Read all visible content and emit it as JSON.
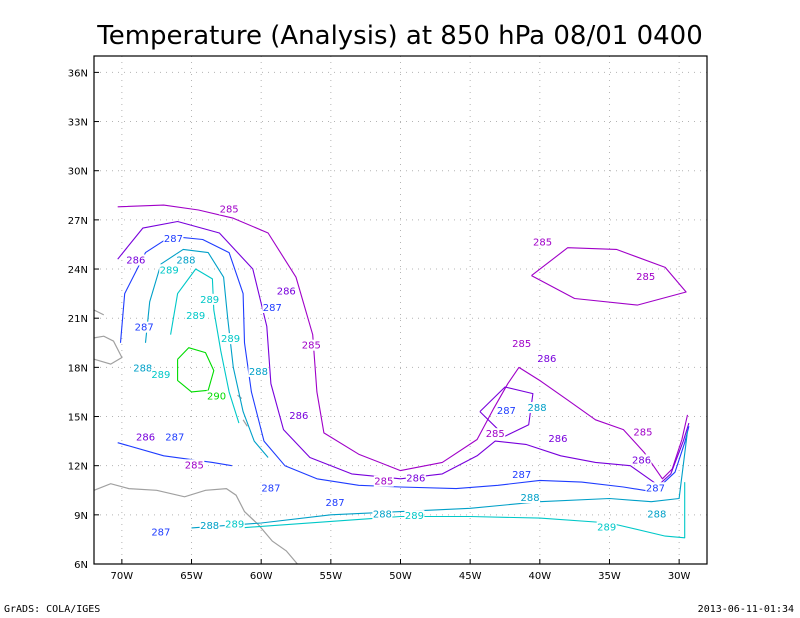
{
  "chart_data": {
    "type": "contour-map",
    "title": "Temperature (Analysis) at 850 hPa 08/01 0400",
    "x_ticks": [
      {
        "lon": -70,
        "label": "70W"
      },
      {
        "lon": -65,
        "label": "65W"
      },
      {
        "lon": -60,
        "label": "60W"
      },
      {
        "lon": -55,
        "label": "55W"
      },
      {
        "lon": -50,
        "label": "50W"
      },
      {
        "lon": -45,
        "label": "45W"
      },
      {
        "lon": -40,
        "label": "40W"
      },
      {
        "lon": -35,
        "label": "35W"
      },
      {
        "lon": -30,
        "label": "30W"
      }
    ],
    "y_ticks": [
      {
        "lat": 6,
        "label": "6N"
      },
      {
        "lat": 9,
        "label": "9N"
      },
      {
        "lat": 12,
        "label": "12N"
      },
      {
        "lat": 15,
        "label": "15N"
      },
      {
        "lat": 18,
        "label": "18N"
      },
      {
        "lat": 21,
        "label": "21N"
      },
      {
        "lat": 24,
        "label": "24N"
      },
      {
        "lat": 27,
        "label": "27N"
      },
      {
        "lat": 30,
        "label": "30N"
      },
      {
        "lat": 33,
        "label": "33N"
      },
      {
        "lat": 36,
        "label": "36N"
      }
    ],
    "xlim": [
      -72,
      -28
    ],
    "ylim": [
      6,
      37
    ],
    "grid": true,
    "level_colors": {
      "285": "#a000c8",
      "286": "#7800dc",
      "287": "#1e3cff",
      "288": "#00a0c8",
      "289": "#00c8c8",
      "290": "#00dc00"
    },
    "contours": [
      {
        "level": 285,
        "points": [
          [
            -70.3,
            27.8
          ],
          [
            -67,
            27.9
          ],
          [
            -64.5,
            27.6
          ],
          [
            -62,
            27.1
          ],
          [
            -59.5,
            26.2
          ],
          [
            -57.5,
            23.5
          ],
          [
            -56.3,
            20
          ],
          [
            -56,
            16.5
          ],
          [
            -55.5,
            14
          ],
          [
            -53,
            12.7
          ],
          [
            -50,
            11.7
          ],
          [
            -47,
            12.2
          ],
          [
            -44.5,
            13.6
          ],
          [
            -43.3,
            15.5
          ],
          [
            -42.3,
            17
          ],
          [
            -41.5,
            18
          ],
          [
            -40,
            17.2
          ],
          [
            -38,
            16
          ],
          [
            -36,
            14.8
          ],
          [
            -34,
            14.2
          ],
          [
            -32.5,
            12.8
          ],
          [
            -31.2,
            11.2
          ],
          [
            -30.5,
            11.8
          ],
          [
            -29.8,
            13.6
          ],
          [
            -29.4,
            15.1
          ]
        ]
      },
      {
        "level": 285,
        "points": [
          [
            -40.6,
            23.6
          ],
          [
            -38,
            25.3
          ],
          [
            -34.5,
            25.2
          ],
          [
            -31,
            24.1
          ],
          [
            -29.5,
            22.6
          ],
          [
            -33,
            21.8
          ],
          [
            -37.5,
            22.2
          ],
          [
            -40.6,
            23.6
          ]
        ]
      },
      {
        "level": 286,
        "points": [
          [
            -70.3,
            24.6
          ],
          [
            -68.5,
            26.5
          ],
          [
            -66,
            26.9
          ],
          [
            -63,
            26.2
          ],
          [
            -60.6,
            24
          ],
          [
            -59.6,
            20.5
          ],
          [
            -59.3,
            17
          ],
          [
            -58.4,
            14.2
          ],
          [
            -56.5,
            12.5
          ],
          [
            -53.5,
            11.5
          ],
          [
            -50,
            11.2
          ],
          [
            -47,
            11.5
          ],
          [
            -44.5,
            12.6
          ],
          [
            -43.2,
            13.5
          ],
          [
            -41,
            13.3
          ],
          [
            -38.5,
            12.6
          ],
          [
            -36,
            12.2
          ],
          [
            -33.5,
            12
          ],
          [
            -31.5,
            10.8
          ],
          [
            -30.6,
            11.5
          ],
          [
            -29.7,
            13.5
          ],
          [
            -29.3,
            14.6
          ]
        ]
      },
      {
        "level": 286,
        "points": [
          [
            -44.3,
            15.3
          ],
          [
            -42.5,
            16.8
          ],
          [
            -40.5,
            16.4
          ],
          [
            -40.8,
            14.5
          ],
          [
            -42.5,
            13.8
          ],
          [
            -44.3,
            15.3
          ]
        ]
      },
      {
        "level": 287,
        "points": [
          [
            -70.1,
            19.5
          ],
          [
            -69.8,
            22.5
          ],
          [
            -68.3,
            25
          ],
          [
            -66.5,
            26
          ],
          [
            -64.2,
            25.8
          ],
          [
            -62.3,
            25
          ],
          [
            -61.3,
            22.5
          ],
          [
            -61.2,
            19.5
          ],
          [
            -60.7,
            16.5
          ],
          [
            -59.8,
            13.5
          ],
          [
            -58.3,
            12
          ],
          [
            -56,
            11.2
          ],
          [
            -53,
            10.8
          ],
          [
            -50,
            10.7
          ],
          [
            -46,
            10.6
          ],
          [
            -43,
            10.8
          ],
          [
            -40,
            11.1
          ],
          [
            -37,
            11
          ],
          [
            -34,
            10.7
          ],
          [
            -31.8,
            10.4
          ],
          [
            -30.3,
            11.6
          ],
          [
            -29.6,
            13.4
          ],
          [
            -29.3,
            14.4
          ]
        ]
      },
      {
        "level": 287,
        "points": [
          [
            -70.3,
            13.4
          ],
          [
            -67,
            12.6
          ],
          [
            -63.5,
            12.2
          ],
          [
            -62.1,
            12
          ]
        ]
      },
      {
        "level": 288,
        "points": [
          [
            -68.3,
            19.5
          ],
          [
            -68,
            22
          ],
          [
            -67.2,
            24.3
          ],
          [
            -65.6,
            25.2
          ],
          [
            -63.8,
            25
          ],
          [
            -62.7,
            23.5
          ],
          [
            -62.4,
            21
          ],
          [
            -62,
            18
          ],
          [
            -61.3,
            15.3
          ],
          [
            -60.5,
            13.5
          ],
          [
            -59.5,
            12.5
          ]
        ]
      },
      {
        "level": 288,
        "points": [
          [
            -65,
            8.2
          ],
          [
            -60,
            8.5
          ],
          [
            -55,
            9
          ],
          [
            -50,
            9.2
          ],
          [
            -45,
            9.4
          ],
          [
            -40,
            9.8
          ],
          [
            -35,
            10
          ],
          [
            -32,
            9.8
          ],
          [
            -30,
            10
          ],
          [
            -29.4,
            14.1
          ]
        ]
      },
      {
        "level": 289,
        "points": [
          [
            -66.5,
            20
          ],
          [
            -66,
            22.5
          ],
          [
            -64.7,
            24
          ],
          [
            -63.5,
            23.4
          ],
          [
            -63.4,
            21.5
          ],
          [
            -62.9,
            19
          ],
          [
            -62.3,
            16.5
          ],
          [
            -61.6,
            14.6
          ]
        ]
      },
      {
        "level": 289,
        "points": [
          [
            -61.5,
            8.2
          ],
          [
            -55,
            8.6
          ],
          [
            -50,
            8.9
          ],
          [
            -45,
            8.9
          ],
          [
            -40,
            8.8
          ],
          [
            -35,
            8.5
          ],
          [
            -31,
            7.7
          ],
          [
            -29.6,
            7.6
          ],
          [
            -29.6,
            11
          ]
        ]
      },
      {
        "level": 290,
        "points": [
          [
            -66,
            18.5
          ],
          [
            -65.2,
            19.2
          ],
          [
            -64,
            18.9
          ],
          [
            -63.4,
            17.8
          ],
          [
            -63.8,
            16.6
          ],
          [
            -65,
            16.5
          ],
          [
            -66,
            17.2
          ],
          [
            -66,
            18.5
          ]
        ]
      }
    ],
    "contour_labels": [
      {
        "text": "285",
        "lon": -62.3,
        "lat": 27.5,
        "level": 285
      },
      {
        "text": "285",
        "lon": -39.8,
        "lat": 25.5,
        "level": 285
      },
      {
        "text": "285",
        "lon": -32.4,
        "lat": 23.4,
        "level": 285
      },
      {
        "text": "285",
        "lon": -56.4,
        "lat": 19.2,
        "level": 285
      },
      {
        "text": "285",
        "lon": -41.3,
        "lat": 19.3,
        "level": 285
      },
      {
        "text": "285",
        "lon": -43.2,
        "lat": 13.8,
        "level": 285
      },
      {
        "text": "285",
        "lon": -32.6,
        "lat": 13.9,
        "level": 285
      },
      {
        "text": "285",
        "lon": -51.2,
        "lat": 10.9,
        "level": 285
      },
      {
        "text": "285",
        "lon": -64.8,
        "lat": 11.9,
        "level": 285
      },
      {
        "text": "286",
        "lon": -69,
        "lat": 24.4,
        "level": 286
      },
      {
        "text": "286",
        "lon": -58.2,
        "lat": 22.5,
        "level": 286
      },
      {
        "text": "286",
        "lon": -39.5,
        "lat": 18.4,
        "level": 286
      },
      {
        "text": "286",
        "lon": -57.3,
        "lat": 14.9,
        "level": 286
      },
      {
        "text": "286",
        "lon": -68.3,
        "lat": 13.6,
        "level": 286
      },
      {
        "text": "286",
        "lon": -48.9,
        "lat": 11.1,
        "level": 286
      },
      {
        "text": "286",
        "lon": -38.7,
        "lat": 13.5,
        "level": 286
      },
      {
        "text": "286",
        "lon": -32.7,
        "lat": 12.2,
        "level": 286
      },
      {
        "text": "287",
        "lon": -66.3,
        "lat": 25.7,
        "level": 287
      },
      {
        "text": "287",
        "lon": -59.2,
        "lat": 21.5,
        "level": 287
      },
      {
        "text": "287",
        "lon": -68.4,
        "lat": 20.3,
        "level": 287
      },
      {
        "text": "287",
        "lon": -66.2,
        "lat": 13.6,
        "level": 287
      },
      {
        "text": "287",
        "lon": -59.3,
        "lat": 10.5,
        "level": 287
      },
      {
        "text": "287",
        "lon": -54.7,
        "lat": 9.6,
        "level": 287
      },
      {
        "text": "287",
        "lon": -41.3,
        "lat": 11.3,
        "level": 287
      },
      {
        "text": "287",
        "lon": -31.7,
        "lat": 10.5,
        "level": 287
      },
      {
        "text": "287",
        "lon": -42.4,
        "lat": 15.2,
        "level": 287
      },
      {
        "text": "287",
        "lon": -67.2,
        "lat": 7.8,
        "level": 287
      },
      {
        "text": "288",
        "lon": -65.4,
        "lat": 24.4,
        "level": 288
      },
      {
        "text": "288",
        "lon": -60.2,
        "lat": 17.6,
        "level": 288
      },
      {
        "text": "288",
        "lon": -68.5,
        "lat": 17.8,
        "level": 288
      },
      {
        "text": "288",
        "lon": -40.2,
        "lat": 15.4,
        "level": 288
      },
      {
        "text": "288",
        "lon": -40.7,
        "lat": 9.9,
        "level": 288
      },
      {
        "text": "288",
        "lon": -51.3,
        "lat": 8.9,
        "level": 288
      },
      {
        "text": "288",
        "lon": -31.6,
        "lat": 8.9,
        "level": 288
      },
      {
        "text": "288",
        "lon": -63.7,
        "lat": 8.2,
        "level": 288
      },
      {
        "text": "289",
        "lon": -66.6,
        "lat": 23.8,
        "level": 289
      },
      {
        "text": "289",
        "lon": -63.7,
        "lat": 22,
        "level": 289
      },
      {
        "text": "289",
        "lon": -64.7,
        "lat": 21,
        "level": 289
      },
      {
        "text": "289",
        "lon": -62.2,
        "lat": 19.6,
        "level": 289
      },
      {
        "text": "289",
        "lon": -67.2,
        "lat": 17.4,
        "level": 289
      },
      {
        "text": "289",
        "lon": -49,
        "lat": 8.8,
        "level": 289
      },
      {
        "text": "289",
        "lon": -35.2,
        "lat": 8.1,
        "level": 289
      },
      {
        "text": "289",
        "lon": -61.9,
        "lat": 8.3,
        "level": 289
      },
      {
        "text": "290",
        "lon": -63.2,
        "lat": 16.1,
        "level": 290
      }
    ]
  },
  "footer": {
    "left": "GrADS: COLA/IGES",
    "right": "2013-06-11-01:34"
  }
}
